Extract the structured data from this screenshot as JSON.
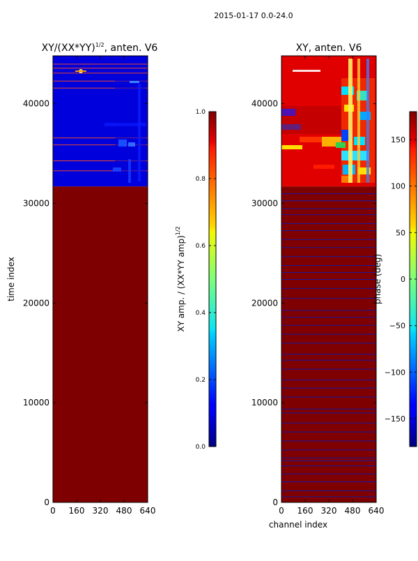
{
  "suptitle": "2015-01-17 0.0-24.0",
  "chart_data": [
    {
      "type": "heatmap",
      "title_main": "XY/(XX*YY)",
      "title_exp": "1/2",
      "title_rest": ", anten. V6",
      "xlabel": "",
      "ylabel": "time index",
      "xlim": [
        0,
        640
      ],
      "ylim": [
        0,
        44800
      ],
      "xticks": [
        0,
        160,
        320,
        480,
        640
      ],
      "yticks": [
        0,
        10000,
        20000,
        30000,
        40000
      ],
      "colormap": "jet",
      "regions": [
        {
          "y_from": 0,
          "y_to": 31700,
          "value": 1.0
        },
        {
          "y_from": 31700,
          "y_to": 44800,
          "value": 0.08
        }
      ],
      "stripes_y": [
        33300,
        34300,
        35900,
        36600,
        41600,
        42300,
        43100,
        43600,
        44000
      ],
      "colorbar": {
        "label_main": "XY amp. / (XX*YY amp)",
        "label_exp": "1/2",
        "vmin": 0.0,
        "vmax": 1.0,
        "ticks": [
          "0.0",
          "0.2",
          "0.4",
          "0.6",
          "0.8",
          "1.0"
        ],
        "tick_values": [
          0.0,
          0.2,
          0.4,
          0.6,
          0.8,
          1.0
        ]
      }
    },
    {
      "type": "heatmap",
      "title": "XY, anten. V6",
      "xlabel": "channel index",
      "ylabel": "",
      "xlim": [
        0,
        640
      ],
      "ylim": [
        0,
        44800
      ],
      "xticks": [
        0,
        160,
        320,
        480,
        640
      ],
      "yticks": [
        0,
        10000,
        20000,
        30000,
        40000
      ],
      "colormap": "jet",
      "regions": [
        {
          "y_from": 0,
          "y_to": 31700,
          "value": 180
        },
        {
          "y_from": 31700,
          "y_to": 44800,
          "value": 150
        }
      ],
      "stripes_y": [
        600,
        1200,
        2100,
        2900,
        3700,
        4200,
        4500,
        5300,
        6200,
        7100,
        8000,
        9000,
        9400,
        10600,
        11500,
        12300,
        13400,
        14300,
        14900,
        16000,
        16900,
        17800,
        18600,
        19300,
        20500,
        21500,
        22400,
        23100,
        23800,
        24700,
        25600,
        26400,
        27300,
        28000,
        28900,
        29500,
        30300,
        31000
      ],
      "colorbar": {
        "label": "phase (deg)",
        "vmin": -180,
        "vmax": 180,
        "ticks": [
          "−150",
          "−100",
          "−50",
          "0",
          "50",
          "100",
          "150"
        ],
        "tick_values": [
          -150,
          -100,
          -50,
          0,
          50,
          100,
          150
        ]
      }
    }
  ]
}
